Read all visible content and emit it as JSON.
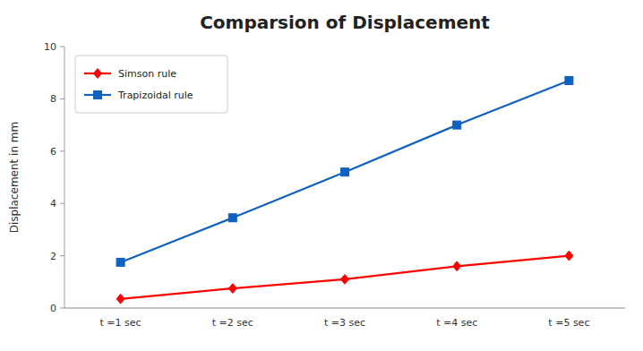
{
  "chart_data": {
    "type": "line",
    "title": "Comparsion of Displacement",
    "y_label": "Displacement in mm",
    "categories": [
      "t =1 sec",
      "t =2 sec",
      "t =3 sec",
      "t =4 sec",
      "t =5 sec"
    ],
    "series": [
      {
        "name": "Simson rule",
        "color": "#ff0000",
        "marker": "diamond",
        "values": [
          0.35,
          0.75,
          1.1,
          1.6,
          2.0
        ]
      },
      {
        "name": "Trapizoidal rule",
        "color": "#1060c0",
        "marker": "square",
        "values": [
          1.75,
          3.45,
          5.2,
          7.0,
          8.7
        ]
      }
    ],
    "ylim": [
      0,
      10
    ],
    "yticks": [
      0,
      2,
      4,
      6,
      8,
      10
    ],
    "grid": false,
    "legend": "upper left"
  }
}
